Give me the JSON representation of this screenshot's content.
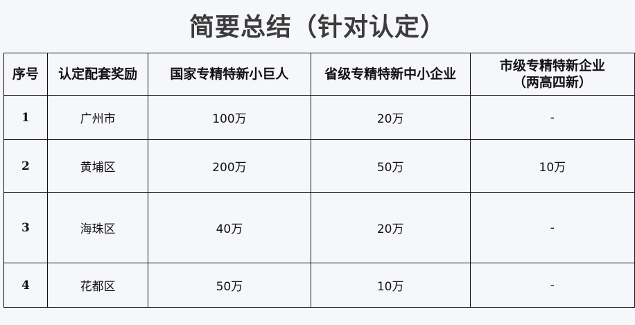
{
  "title": "简要总结（针对认定）",
  "headers": [
    "序号",
    "认定配套奖励",
    "国家专精特新小巨人",
    "省级专精特新中小企业",
    "市级专精特新企业\n（两高四新）"
  ],
  "header_line1": "市级专精特新企业",
  "header_line2": "（两高四新）",
  "rows": [
    {
      "no": "1",
      "region": "广州市",
      "national": "100万",
      "provincial": "20万",
      "municipal": "-"
    },
    {
      "no": "2",
      "region": "黄埔区",
      "national": "200万",
      "provincial": "50万",
      "municipal": "10万"
    },
    {
      "no": "3",
      "region": "海珠区",
      "national": "40万",
      "provincial": "20万",
      "municipal": "-"
    },
    {
      "no": "4",
      "region": "花都区",
      "national": "50万",
      "provincial": "10万",
      "municipal": "-"
    }
  ]
}
